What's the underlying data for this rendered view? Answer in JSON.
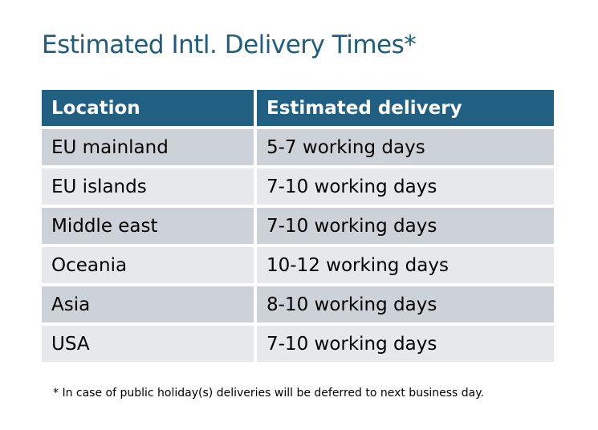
{
  "title": "Estimated Intl. Delivery Times*",
  "table": {
    "headers": [
      "Location",
      "Estimated delivery"
    ],
    "rows": [
      [
        "EU mainland",
        "5-7 working days"
      ],
      [
        "EU islands",
        "7-10 working days"
      ],
      [
        "Middle east",
        "7-10 working days"
      ],
      [
        "Oceania",
        "10-12 working days"
      ],
      [
        "Asia",
        "8-10 working days"
      ],
      [
        "USA",
        "7-10 working days"
      ]
    ]
  },
  "footnote": "* In case of public holiday(s) deliveries will be deferred to next business day.",
  "colors": {
    "header": "#216082",
    "row_dark": "#cdd1d8",
    "row_light": "#e6e8eb",
    "title": "#1f5d7e"
  }
}
